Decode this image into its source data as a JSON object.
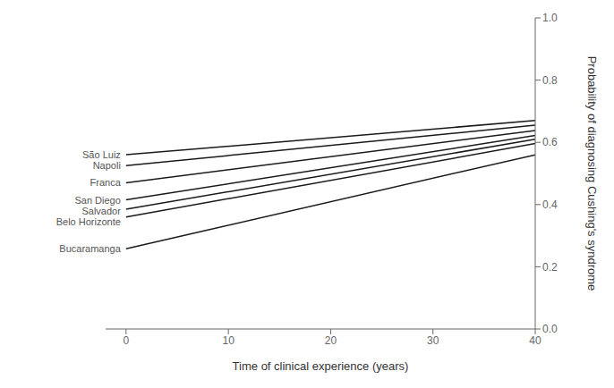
{
  "chart_data": {
    "type": "line",
    "xlabel": "Time of clinical experience (years)",
    "ylabel": "Probability of diagnosing Cushing's syndrome",
    "x": [
      0,
      40
    ],
    "series": [
      {
        "name": "São Luiz",
        "values": [
          0.56,
          0.67
        ]
      },
      {
        "name": "Napoli",
        "values": [
          0.525,
          0.655
        ]
      },
      {
        "name": "Franca",
        "values": [
          0.47,
          0.638
        ]
      },
      {
        "name": "San Diego",
        "values": [
          0.415,
          0.622
        ]
      },
      {
        "name": "Salvador",
        "values": [
          0.385,
          0.61
        ]
      },
      {
        "name": "Belo Horizonte",
        "values": [
          0.36,
          0.596
        ]
      },
      {
        "name": "Bucaramanga",
        "values": [
          0.258,
          0.56
        ]
      }
    ],
    "color": "#1a1a1a",
    "xlim": [
      -2,
      40
    ],
    "ylim": [
      0.0,
      1.0
    ],
    "xticks": [
      0,
      10,
      20,
      30,
      40
    ],
    "yticks": [
      {
        "value": 0,
        "label": "0.0"
      },
      0.2,
      0.4,
      0.6,
      0.8,
      {
        "value": 1,
        "label": "1.0"
      }
    ],
    "grid": false
  }
}
